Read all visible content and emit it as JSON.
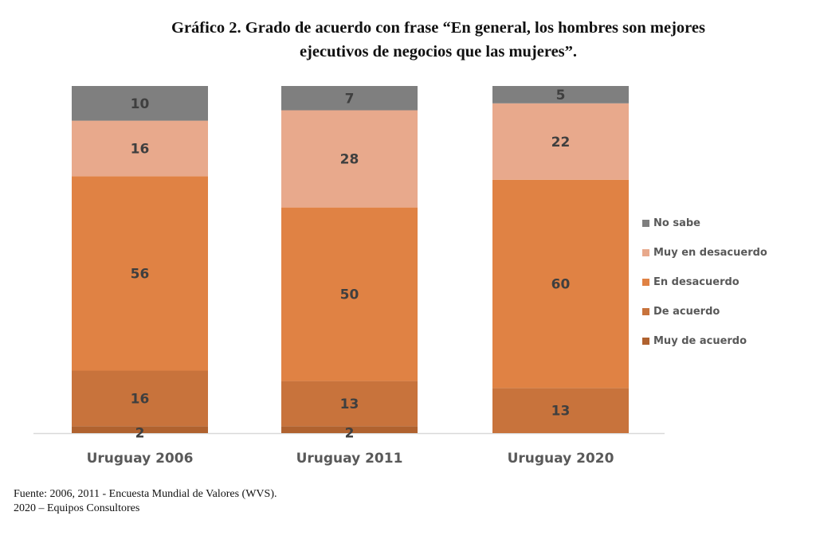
{
  "chart_data": {
    "type": "bar",
    "stacked": true,
    "title": "Gráfico 2. Grado de acuerdo con frase “En general, los hombres son mejores ejecutivos de negocios que las mujeres”.",
    "title_lines": [
      "Gráfico 2. Grado de acuerdo con frase “En general, los hombres son mejores",
      "ejecutivos de negocios que las mujeres”."
    ],
    "xlabel": "",
    "ylabel": "",
    "ylim": [
      0,
      100
    ],
    "grid": false,
    "legend_position": "right",
    "categories": [
      "Uruguay 2006",
      "Uruguay 2011",
      "Uruguay 2020"
    ],
    "series": [
      {
        "name": "Muy de acuerdo",
        "color": "#b0622f",
        "values": [
          2,
          2,
          0
        ],
        "labels": [
          "2",
          "2",
          ""
        ]
      },
      {
        "name": "De acuerdo",
        "color": "#c8733c",
        "values": [
          16,
          13,
          13
        ],
        "labels": [
          "16",
          "13",
          "13"
        ]
      },
      {
        "name": "En desacuerdo",
        "color": "#e08244",
        "values": [
          56,
          50,
          60
        ],
        "labels": [
          "56",
          "50",
          "60"
        ]
      },
      {
        "name": "Muy en desacuerdo",
        "color": "#e8a98c",
        "values": [
          16,
          28,
          22
        ],
        "labels": [
          "16",
          "28",
          "22"
        ]
      },
      {
        "name": "No sabe",
        "color": "#7f7f7f",
        "values": [
          10,
          7,
          5
        ],
        "labels": [
          "10",
          "7",
          "5"
        ]
      }
    ],
    "legend_order": [
      "No sabe",
      "Muy en desacuerdo",
      "En desacuerdo",
      "De acuerdo",
      "Muy de acuerdo"
    ]
  },
  "source": {
    "line1": "Fuente: 2006, 2011 - Encuesta Mundial de Valores (WVS).",
    "line2": "2020 – Equipos Consultores"
  }
}
